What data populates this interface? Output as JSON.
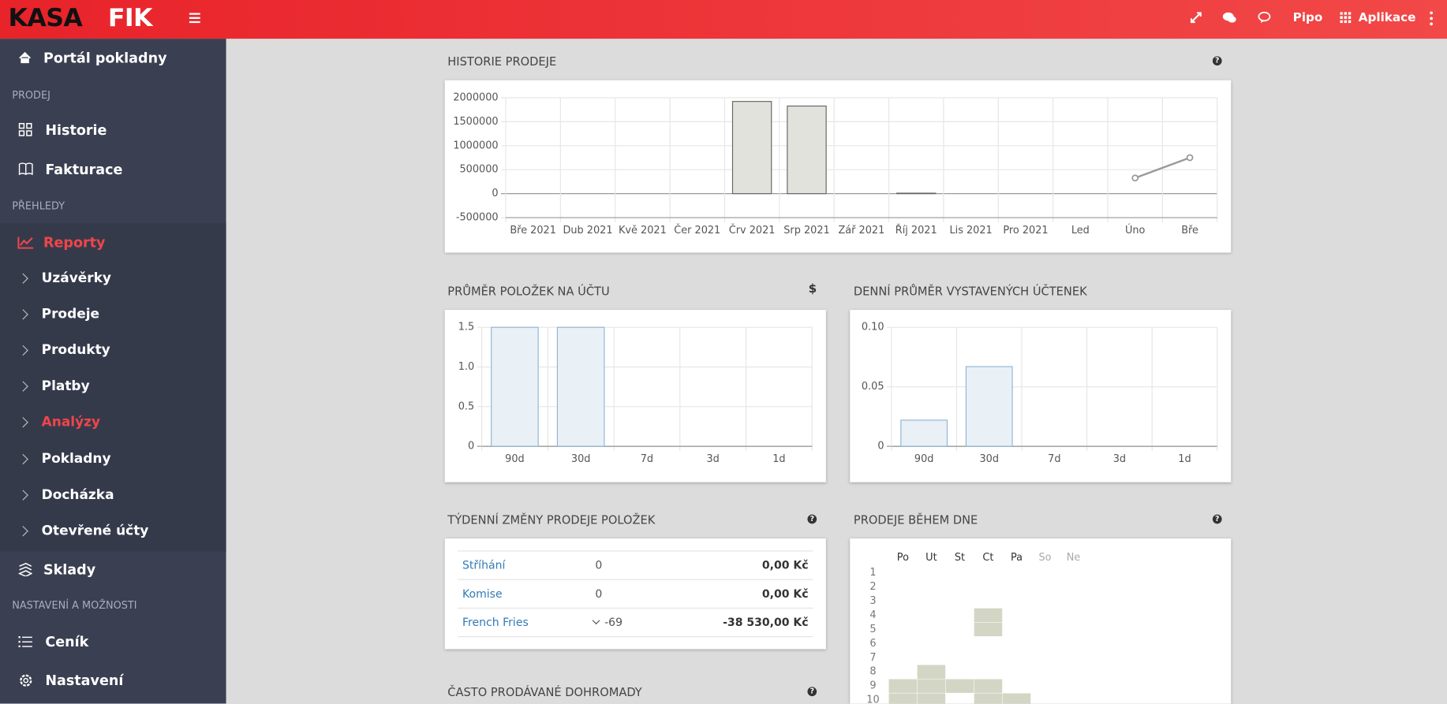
{
  "brand": {
    "left": "KASA",
    "right": "FIK"
  },
  "topbar": {
    "user": "Pipo",
    "apps": "Aplikace"
  },
  "sidebar": {
    "portal": "Portál pokladny",
    "sections": [
      {
        "title": "PRODEJ",
        "items": [
          "Historie",
          "Fakturace"
        ]
      },
      {
        "title": "PŘEHLEDY",
        "active": "Reporty",
        "subitems": [
          "Uzávěrky",
          "Prodeje",
          "Produkty",
          "Platby",
          "Analýzy",
          "Pokladny",
          "Docházka",
          "Otevřené účty"
        ],
        "after": "Sklady"
      },
      {
        "title": "NASTAVENÍ A MOŽNOSTI",
        "items": [
          "Ceník",
          "Nastavení"
        ]
      }
    ]
  },
  "chart_data": [
    {
      "type": "bar",
      "title": "HISTORIE PRODEJE",
      "categories": [
        "Bře 2021",
        "Dub 2021",
        "Kvě 2021",
        "Čer 2021",
        "Črv 2021",
        "Srp 2021",
        "Zář 2021",
        "Říj 2021",
        "Lis 2021",
        "Pro 2021",
        "Led",
        "Úno",
        "Bře"
      ],
      "series": [
        {
          "type": "bar",
          "color": "#e2e2dc",
          "stroke": "#666666",
          "values": [
            null,
            null,
            null,
            null,
            1923000,
            1827000,
            null,
            10000,
            null,
            null,
            null,
            null,
            null
          ]
        },
        {
          "type": "line",
          "color": "#999999",
          "values": [
            null,
            null,
            null,
            null,
            null,
            null,
            null,
            null,
            null,
            null,
            null,
            327000,
            750000
          ]
        }
      ],
      "ylim": [
        -500000,
        2000000
      ],
      "yticks": [
        -500000,
        0,
        500000,
        1000000,
        1500000,
        2000000
      ],
      "grid": true
    },
    {
      "type": "bar",
      "title": "PRŮMĚR POLOŽEK NA ÚČTU",
      "icon": "$",
      "categories": [
        "90d",
        "30d",
        "7d",
        "3d",
        "1d"
      ],
      "series": [
        {
          "type": "bar",
          "color": "#e9f0f6",
          "stroke": "#92b6d4",
          "values": [
            1.5,
            1.5,
            0,
            0,
            0
          ]
        }
      ],
      "ylim": [
        0,
        1.5
      ],
      "yticks": [
        0,
        0.5,
        {
          "value": 1,
          "label": "1.0"
        },
        1.5
      ],
      "grid": true
    },
    {
      "type": "bar",
      "title": "DENNÍ PRŮMĚR VYSTAVENÝCH ÚČTENEK",
      "categories": [
        "90d",
        "30d",
        "7d",
        "3d",
        "1d"
      ],
      "series": [
        {
          "type": "bar",
          "color": "#e9f0f6",
          "stroke": "#92b6d4",
          "values": [
            0.022,
            0.067,
            0,
            0,
            0
          ]
        }
      ],
      "ylim": [
        0,
        0.1
      ],
      "yticks": [
        0,
        0.05,
        {
          "value": 0.1,
          "label": "0.10"
        }
      ],
      "grid": true
    },
    {
      "type": "heatmap",
      "title": "PRODEJE BĚHEM DNE",
      "color": "#d3d6c4",
      "x": [
        "Po",
        "Ut",
        "St",
        "Ct",
        "Pa",
        "So",
        "Ne"
      ],
      "y": [
        1,
        2,
        3,
        4,
        5,
        6,
        7,
        8,
        9,
        10
      ],
      "values": [
        [
          0,
          0,
          0,
          0,
          0,
          0,
          0
        ],
        [
          0,
          0,
          0,
          0,
          0,
          0,
          0
        ],
        [
          0,
          0,
          0,
          0,
          0,
          0,
          0
        ],
        [
          0,
          0,
          0,
          1,
          0,
          0,
          0
        ],
        [
          0,
          0,
          0,
          1,
          0,
          0,
          0
        ],
        [
          0,
          0,
          0,
          0,
          0,
          0,
          0
        ],
        [
          0,
          0,
          0,
          0,
          0,
          0,
          0
        ],
        [
          0,
          1,
          0,
          0,
          0,
          0,
          0
        ],
        [
          1,
          1,
          1,
          1,
          0,
          0,
          0
        ],
        [
          1,
          1,
          0,
          1,
          1,
          0,
          0
        ]
      ]
    }
  ],
  "table": {
    "title": "TÝDENNÍ ZMĚNY PRODEJE POLOŽEK",
    "rows": [
      [
        "Stříhání",
        "0",
        "0,00 Kč"
      ],
      [
        "Komise",
        "0",
        "0,00 Kč"
      ],
      [
        "French Fries",
        "-69",
        "-38 530,00 Kč"
      ]
    ]
  },
  "next_panel": {
    "title": "ČASTO PRODÁVANÉ DOHROMADY"
  }
}
